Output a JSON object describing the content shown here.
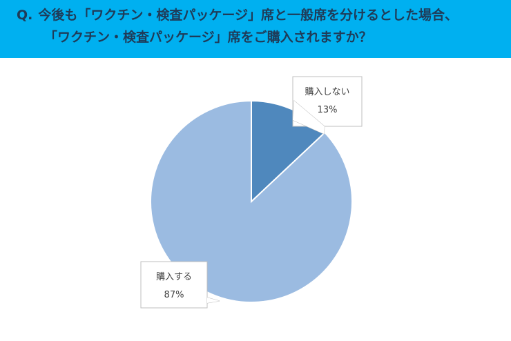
{
  "question": {
    "prefix": "Q.",
    "line1": "今後も「ワクチン・検査パッケージ」席と一般席を分けるとした場合、",
    "line2": "「ワクチン・検査パッケージ」席をご購入されますか？"
  },
  "colors": {
    "header_bg": "#00B0F0",
    "question_text": "#1f3b58",
    "slice_dark": "#4F88BD",
    "slice_light": "#9BBBE1"
  },
  "chart_data": {
    "type": "pie",
    "title": "",
    "categories": [
      "購入しない",
      "購入する"
    ],
    "values": [
      13,
      87
    ],
    "data_labels": [
      "13%",
      "87%"
    ],
    "start_angle": "12 o'clock, clockwise",
    "legend": "none"
  }
}
